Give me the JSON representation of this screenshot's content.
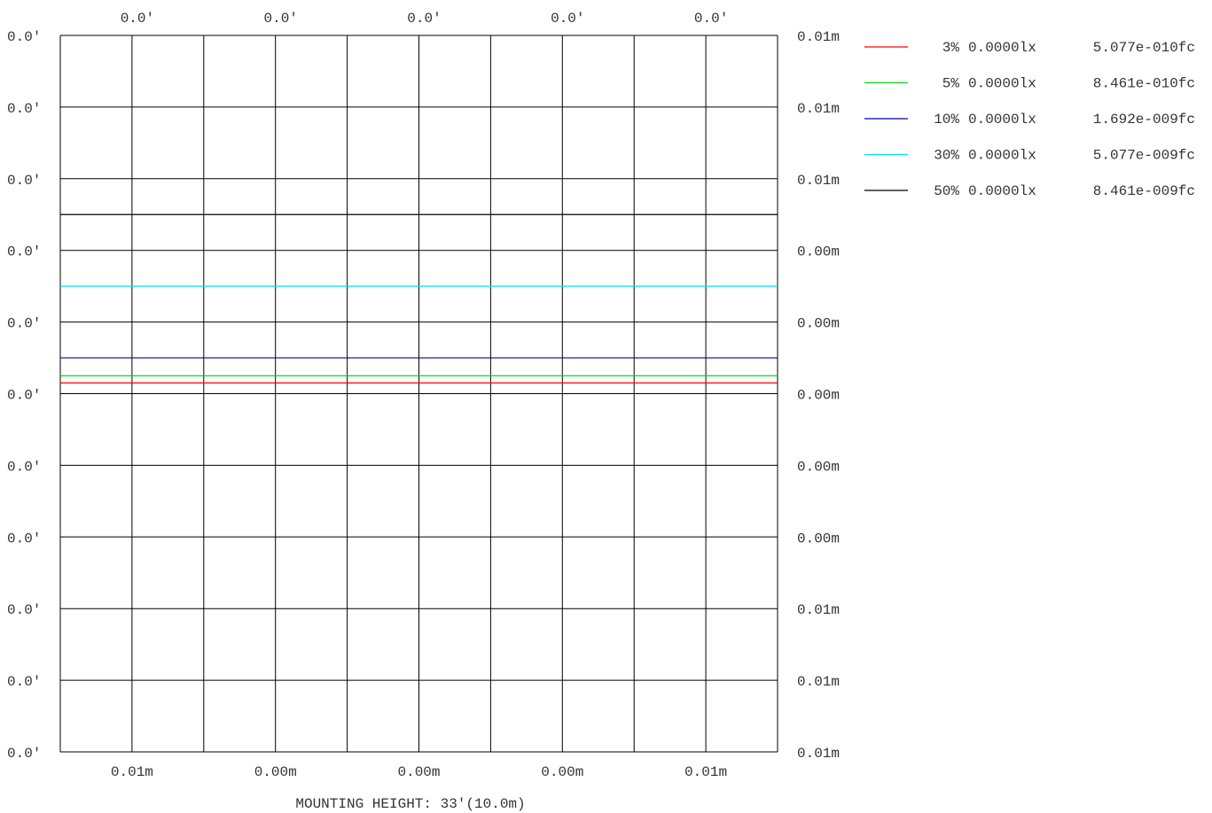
{
  "chart_data": {
    "type": "line",
    "title": "",
    "xlabel": "MOUNTING HEIGHT: 33'(10.0m)",
    "top_tick_labels": [
      "0.0'",
      "0.0'",
      "0.0'",
      "0.0'",
      "0.0'"
    ],
    "bottom_tick_labels": [
      "0.01m",
      "0.00m",
      "0.00m",
      "0.00m",
      "0.01m"
    ],
    "left_tick_labels": [
      "0.0'",
      "0.0'",
      "0.0'",
      "0.0'",
      "0.0'",
      "0.0'",
      "0.0'",
      "0.0'",
      "0.0'",
      "0.0'",
      "0.0'"
    ],
    "right_tick_labels": [
      "0.01m",
      "0.01m",
      "0.01m",
      "0.00m",
      "0.00m",
      "0.00m",
      "0.00m",
      "0.00m",
      "0.01m",
      "0.01m",
      "0.01m"
    ],
    "y_range": [
      -5,
      5
    ],
    "x_range": [
      -5,
      5
    ],
    "grid": true,
    "legend_placement": "right",
    "series": [
      {
        "name": "3% 0.0000lx 5.077e-010fc",
        "percent": "3%",
        "lux": "0.0000lx",
        "fc": "5.077e-010fc",
        "color": "#ff0000",
        "y": 0.15
      },
      {
        "name": "5% 0.0000lx 8.461e-010fc",
        "percent": "5%",
        "lux": "0.0000lx",
        "fc": "8.461e-010fc",
        "color": "#00dd00",
        "y": 0.25
      },
      {
        "name": "10% 0.0000lx 1.692e-009fc",
        "percent": "10%",
        "lux": "0.0000lx",
        "fc": "1.692e-009fc",
        "color": "#0000aa",
        "y": 0.5
      },
      {
        "name": "30% 0.0000lx 5.077e-009fc",
        "percent": "30%",
        "lux": "0.0000lx",
        "fc": "5.077e-009fc",
        "color": "#00e5ee",
        "y": 1.5
      },
      {
        "name": "50% 0.0000lx 8.461e-009fc",
        "percent": "50%",
        "lux": "0.0000lx",
        "fc": "8.461e-009fc",
        "color": "#000000",
        "y": 2.5
      }
    ]
  }
}
